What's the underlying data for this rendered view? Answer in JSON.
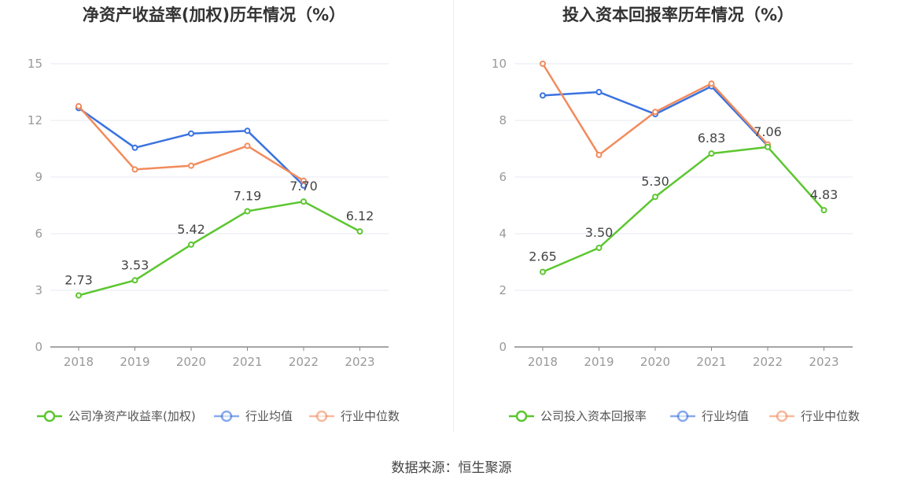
{
  "colors": {
    "company": "#5cc630",
    "industry_avg": "#3a73e0",
    "industry_median": "#f28b5c",
    "grid": "#e6e9f2",
    "axis": "#888888"
  },
  "source": "数据来源：恒生聚源",
  "chart_data": [
    {
      "type": "line",
      "title": "净资产收益率(加权)历年情况（%）",
      "categories": [
        "2018",
        "2019",
        "2020",
        "2021",
        "2022",
        "2023"
      ],
      "yticks": [
        "0",
        "3",
        "6",
        "9",
        "12",
        "15"
      ],
      "ylim": [
        0,
        15
      ],
      "grid": true,
      "legend_position": "bottom",
      "series": [
        {
          "name": "公司净资产收益率(加权)",
          "color": "#5cc630",
          "values": [
            2.73,
            3.53,
            5.42,
            7.19,
            7.7,
            6.12
          ],
          "labels": [
            "2.73",
            "3.53",
            "5.42",
            "7.19",
            "7.70",
            "6.12"
          ]
        },
        {
          "name": "行业均值",
          "color": "#3a73e0",
          "values": [
            12.65,
            10.55,
            11.3,
            11.45,
            8.55,
            null
          ]
        },
        {
          "name": "行业中位数",
          "color": "#f28b5c",
          "values": [
            12.75,
            9.4,
            9.6,
            10.65,
            8.8,
            null
          ]
        }
      ]
    },
    {
      "type": "line",
      "title": "投入资本回报率历年情况（%）",
      "categories": [
        "2018",
        "2019",
        "2020",
        "2021",
        "2022",
        "2023"
      ],
      "yticks": [
        "0",
        "2",
        "4",
        "6",
        "8",
        "10"
      ],
      "ylim": [
        0,
        10
      ],
      "grid": true,
      "legend_position": "bottom",
      "series": [
        {
          "name": "公司投入资本回报率",
          "color": "#5cc630",
          "values": [
            2.65,
            3.5,
            5.3,
            6.83,
            7.06,
            4.83
          ],
          "labels": [
            "2.65",
            "3.50",
            "5.30",
            "6.83",
            "7.06",
            "4.83"
          ]
        },
        {
          "name": "行业均值",
          "color": "#3a73e0",
          "values": [
            8.88,
            9.0,
            8.22,
            9.2,
            7.1,
            null
          ]
        },
        {
          "name": "行业中位数",
          "color": "#f28b5c",
          "values": [
            10.0,
            6.78,
            8.3,
            9.3,
            7.15,
            null
          ]
        }
      ]
    }
  ]
}
